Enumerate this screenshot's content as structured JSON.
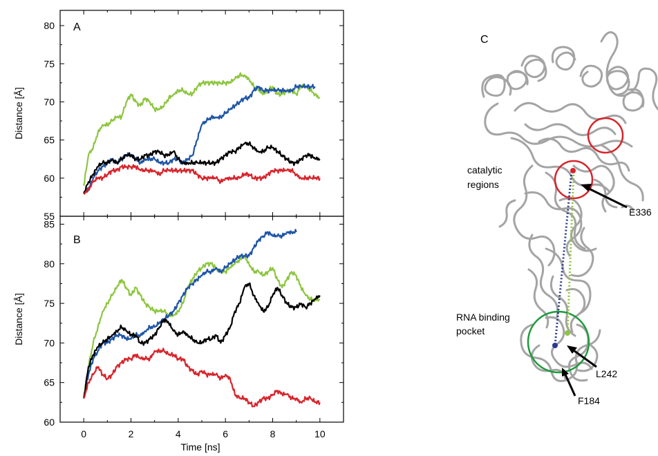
{
  "chart_data": [
    {
      "panel": "A",
      "type": "line",
      "xlabel": "",
      "ylabel": "Distance [Å]",
      "xlim": [
        -1,
        11
      ],
      "ylim": [
        55,
        82
      ],
      "xticks": [
        0,
        2,
        4,
        6,
        8,
        10
      ],
      "yticks": [
        55,
        60,
        65,
        70,
        75,
        80
      ],
      "series": [
        {
          "color": "#8dc63f",
          "x": [
            0,
            0.2,
            0.4,
            0.6,
            0.8,
            1,
            1.2,
            1.4,
            1.6,
            1.8,
            2,
            2.2,
            2.4,
            2.6,
            2.8,
            3,
            3.2,
            3.4,
            3.6,
            3.8,
            4,
            4.2,
            4.4,
            4.6,
            4.8,
            5,
            5.2,
            5.4,
            5.6,
            5.8,
            6,
            6.2,
            6.4,
            6.6,
            6.8,
            7,
            7.2,
            7.4,
            7.6,
            7.8,
            8,
            8.2,
            8.4,
            8.6,
            8.8,
            9,
            9.2,
            9.4,
            9.6,
            9.8,
            10
          ],
          "y": [
            59,
            63,
            64,
            66,
            67,
            67,
            67.5,
            68,
            68,
            70,
            71,
            70,
            69.5,
            70.5,
            70,
            69,
            69,
            69.5,
            70.5,
            71,
            71.5,
            71.5,
            71,
            71,
            72,
            72.5,
            72.5,
            72.5,
            72.5,
            72.5,
            72.5,
            72.5,
            73,
            73.5,
            73.5,
            73,
            72,
            71.5,
            71,
            71.5,
            72,
            71,
            71,
            71.5,
            71.5,
            71,
            72,
            72,
            71.5,
            71,
            70.5
          ]
        },
        {
          "color": "#1f55a6",
          "x": [
            0,
            0.2,
            0.4,
            0.6,
            0.8,
            1,
            1.2,
            1.4,
            1.6,
            1.8,
            2,
            2.2,
            2.4,
            2.6,
            2.8,
            3,
            3.2,
            3.4,
            3.6,
            3.8,
            4,
            4.2,
            4.4,
            4.6,
            4.8,
            5,
            5.2,
            5.4,
            5.6,
            5.8,
            6,
            6.2,
            6.4,
            6.6,
            6.8,
            7,
            7.2,
            7.4,
            7.6,
            7.8,
            8,
            8.2,
            8.4,
            8.6,
            8.8,
            9,
            9.2,
            9.4,
            9.6,
            9.8
          ],
          "y": [
            58,
            58.5,
            60,
            61,
            61.5,
            62,
            62.5,
            62,
            62.5,
            63,
            63,
            62.5,
            62,
            62.5,
            62.5,
            62.5,
            62,
            62,
            62,
            62.5,
            62.5,
            62,
            62.5,
            63,
            65,
            67,
            67.5,
            68,
            68,
            68,
            68.5,
            69,
            69.5,
            70,
            70.5,
            70.5,
            71.5,
            72,
            71.5,
            71.5,
            71.5,
            71.5,
            71.5,
            71.5,
            71.5,
            72,
            72,
            72,
            72,
            72
          ]
        },
        {
          "color": "#000000",
          "x": [
            0,
            0.2,
            0.4,
            0.6,
            0.8,
            1,
            1.2,
            1.4,
            1.6,
            1.8,
            2,
            2.2,
            2.4,
            2.6,
            2.8,
            3,
            3.2,
            3.4,
            3.6,
            3.8,
            4,
            4.2,
            4.4,
            4.6,
            4.8,
            5,
            5.2,
            5.4,
            5.6,
            5.8,
            6,
            6.2,
            6.4,
            6.6,
            6.8,
            7,
            7.2,
            7.4,
            7.6,
            7.8,
            8,
            8.2,
            8.4,
            8.6,
            8.8,
            9,
            9.2,
            9.4,
            9.6,
            9.8,
            10
          ],
          "y": [
            58,
            59.5,
            60.5,
            61.5,
            62,
            62,
            62.5,
            62,
            62.5,
            63,
            63,
            62.5,
            62.5,
            63,
            63,
            63.5,
            63.5,
            63,
            63,
            63.5,
            62.5,
            62,
            62,
            62,
            62,
            62,
            62,
            62,
            62,
            62.5,
            63,
            63.5,
            63.5,
            64,
            64.5,
            64.5,
            64,
            63.5,
            63.5,
            64,
            64,
            63.5,
            63,
            62.5,
            62,
            62,
            62.5,
            63,
            63,
            62.5,
            62.5
          ]
        },
        {
          "color": "#d7242b",
          "x": [
            0,
            0.2,
            0.4,
            0.6,
            0.8,
            1,
            1.2,
            1.4,
            1.6,
            1.8,
            2,
            2.2,
            2.4,
            2.6,
            2.8,
            3,
            3.2,
            3.4,
            3.6,
            3.8,
            4,
            4.2,
            4.4,
            4.6,
            4.8,
            5,
            5.2,
            5.4,
            5.6,
            5.8,
            6,
            6.2,
            6.4,
            6.6,
            6.8,
            7,
            7.2,
            7.4,
            7.6,
            7.8,
            8,
            8.2,
            8.4,
            8.6,
            8.8,
            9,
            9.2,
            9.4,
            9.6,
            9.8,
            10
          ],
          "y": [
            58,
            58.5,
            59.5,
            60,
            60,
            60.5,
            61,
            61,
            61.5,
            61.5,
            61.5,
            61.5,
            61,
            61,
            61,
            61,
            60.5,
            61,
            61,
            61,
            61,
            61,
            61,
            61,
            60.5,
            60,
            60,
            60,
            60,
            59.5,
            60,
            60,
            60,
            60,
            60.5,
            60.5,
            60,
            60,
            60,
            60.5,
            61,
            61,
            61,
            61,
            61,
            60.5,
            60,
            60,
            60,
            60,
            60
          ]
        }
      ]
    },
    {
      "panel": "B",
      "type": "line",
      "xlabel": "Time [ns]",
      "ylabel": "Distance [Å]",
      "xlim": [
        -1,
        11
      ],
      "ylim": [
        60,
        86
      ],
      "xticks": [
        0,
        2,
        4,
        6,
        8,
        10
      ],
      "yticks": [
        60,
        65,
        70,
        75,
        80,
        85
      ],
      "series": [
        {
          "color": "#8dc63f",
          "x": [
            0,
            0.2,
            0.4,
            0.6,
            0.8,
            1,
            1.2,
            1.4,
            1.6,
            1.8,
            2,
            2.2,
            2.4,
            2.6,
            2.8,
            3,
            3.2,
            3.4,
            3.6,
            3.8,
            4,
            4.2,
            4.4,
            4.6,
            4.8,
            5,
            5.2,
            5.4,
            5.6,
            5.8,
            6,
            6.2,
            6.4,
            6.6,
            6.8,
            7,
            7.2,
            7.4,
            7.6,
            7.8,
            8,
            8.2,
            8.4,
            8.6,
            8.8,
            9,
            9.2,
            9.4,
            9.6,
            9.8,
            10
          ],
          "y": [
            63,
            67,
            70,
            72,
            74,
            75,
            76,
            77,
            78,
            77,
            76,
            77,
            76,
            75,
            74.5,
            74,
            74,
            74,
            73.5,
            73.5,
            74,
            75,
            77,
            78,
            79,
            79.5,
            80,
            80,
            79.5,
            79,
            79,
            79.5,
            80,
            80.5,
            81,
            80,
            79,
            79,
            78.5,
            79,
            79.5,
            78,
            77,
            78,
            79,
            78.5,
            77,
            76,
            75.5,
            75.5,
            75.5
          ]
        },
        {
          "color": "#1f55a6",
          "x": [
            0,
            0.2,
            0.4,
            0.6,
            0.8,
            1,
            1.2,
            1.4,
            1.6,
            1.8,
            2,
            2.2,
            2.4,
            2.6,
            2.8,
            3,
            3.2,
            3.4,
            3.6,
            3.8,
            4,
            4.2,
            4.4,
            4.6,
            4.8,
            5,
            5.2,
            5.4,
            5.6,
            5.8,
            6,
            6.2,
            6.4,
            6.6,
            6.8,
            7,
            7.2,
            7.4,
            7.6,
            7.8,
            8,
            8.2,
            8.4,
            8.6,
            8.8,
            9
          ],
          "y": [
            63,
            66,
            68,
            69,
            70,
            70,
            70.5,
            71,
            71,
            70.5,
            70.5,
            71,
            71,
            71.5,
            72,
            72,
            72.5,
            73,
            73.5,
            74,
            75,
            76,
            77,
            77.5,
            78,
            78.5,
            79,
            79,
            79.5,
            79,
            79.5,
            80,
            80.5,
            81,
            81,
            81,
            82,
            83,
            83.5,
            84,
            83.5,
            83.5,
            83.5,
            84,
            84,
            84
          ]
        },
        {
          "color": "#000000",
          "x": [
            0,
            0.2,
            0.4,
            0.6,
            0.8,
            1,
            1.2,
            1.4,
            1.6,
            1.8,
            2,
            2.2,
            2.4,
            2.6,
            2.8,
            3,
            3.2,
            3.4,
            3.6,
            3.8,
            4,
            4.2,
            4.4,
            4.6,
            4.8,
            5,
            5.2,
            5.4,
            5.6,
            5.8,
            6,
            6.2,
            6.4,
            6.6,
            6.8,
            7,
            7.2,
            7.4,
            7.6,
            7.8,
            8,
            8.2,
            8.4,
            8.6,
            8.8,
            9,
            9.2,
            9.4,
            9.6,
            9.8,
            10
          ],
          "y": [
            63,
            67,
            68.5,
            69.5,
            70,
            70.5,
            71,
            71.5,
            72,
            71.5,
            71,
            71,
            70,
            70,
            70.5,
            71,
            72,
            73,
            72.5,
            71.5,
            71,
            71.5,
            71,
            70.5,
            70,
            70,
            70.5,
            70.5,
            71,
            70,
            71,
            72,
            74,
            75,
            77,
            77.5,
            76,
            75,
            74,
            74.5,
            76,
            77,
            76,
            75,
            74.5,
            74.5,
            75,
            74.5,
            75,
            75.5,
            76
          ]
        },
        {
          "color": "#d7242b",
          "x": [
            0,
            0.2,
            0.4,
            0.6,
            0.8,
            1,
            1.2,
            1.4,
            1.6,
            1.8,
            2,
            2.2,
            2.4,
            2.6,
            2.8,
            3,
            3.2,
            3.4,
            3.6,
            3.8,
            4,
            4.2,
            4.4,
            4.6,
            4.8,
            5,
            5.2,
            5.4,
            5.6,
            5.8,
            6,
            6.2,
            6.4,
            6.6,
            6.8,
            7,
            7.2,
            7.4,
            7.6,
            7.8,
            8,
            8.2,
            8.4,
            8.6,
            8.8,
            9,
            9.2,
            9.4,
            9.6,
            9.8,
            10
          ],
          "y": [
            63,
            65,
            66,
            67,
            66,
            65.5,
            66,
            67,
            67.5,
            68,
            68,
            68.5,
            68,
            68,
            68,
            69,
            69,
            69,
            68.5,
            68.5,
            68,
            68,
            67,
            66.5,
            66,
            66.5,
            66,
            66,
            66,
            65.5,
            66,
            65.5,
            63.5,
            63,
            63,
            62.5,
            62,
            62.5,
            63,
            63,
            63.5,
            64,
            63.5,
            63.5,
            63,
            63,
            62.5,
            63,
            63,
            62.5,
            62.5
          ]
        }
      ]
    }
  ],
  "structure_panel": {
    "letter": "C",
    "labels": {
      "catalytic_line1": "catalytic",
      "catalytic_line2": "regions",
      "rna_line1": "RNA binding",
      "rna_line2": "pocket",
      "e336": "E336",
      "l242": "L242",
      "f184": "F184"
    },
    "colors": {
      "ribbon": "#a8a8a8",
      "catalytic_circle": "#d7242b",
      "rna_circle": "#1e9a3d",
      "blue_link": "#2b3a8c",
      "green_link": "#8dc63f"
    }
  }
}
